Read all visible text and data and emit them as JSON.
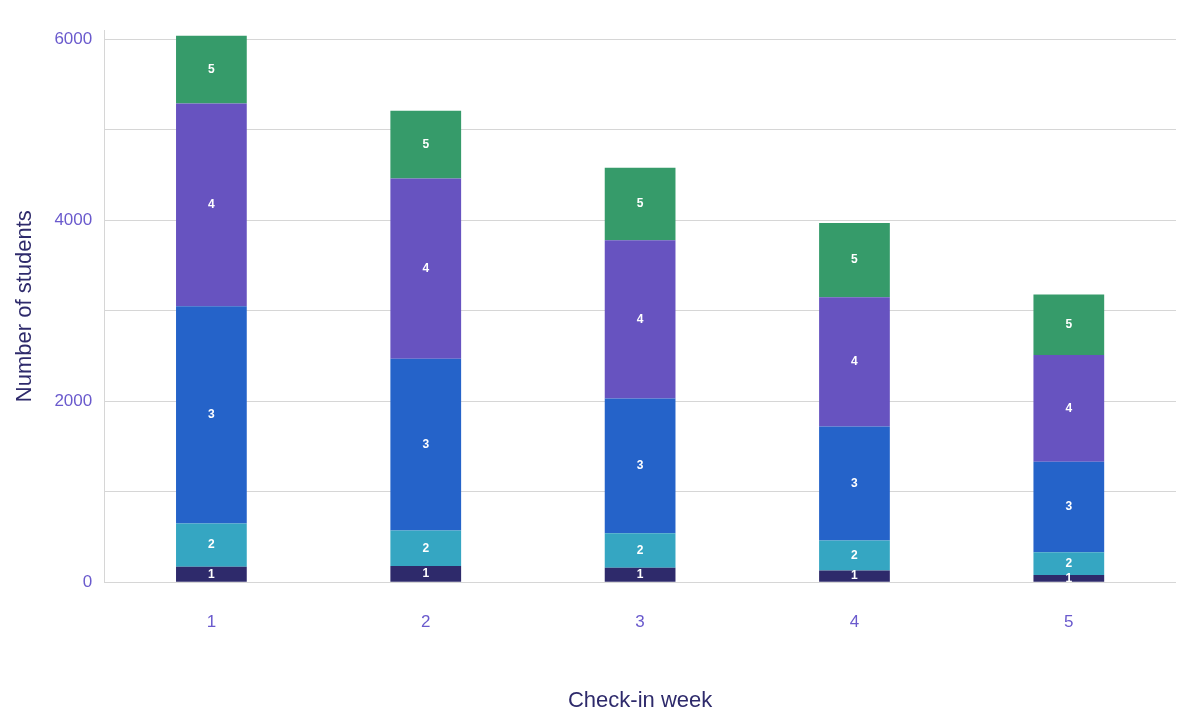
{
  "chart_data": {
    "type": "bar",
    "stacked": true,
    "xlabel": "Check-in week",
    "ylabel": "Number of students",
    "categories": [
      "1",
      "2",
      "3",
      "4",
      "5"
    ],
    "series": [
      {
        "name": "1",
        "color": "#2e2a6b",
        "values": [
          170,
          180,
          160,
          130,
          80
        ]
      },
      {
        "name": "2",
        "color": "#35a6c2",
        "values": [
          480,
          390,
          380,
          330,
          250
        ]
      },
      {
        "name": "3",
        "color": "#2563c9",
        "values": [
          2400,
          1900,
          1490,
          1260,
          1000
        ]
      },
      {
        "name": "4",
        "color": "#6753c0",
        "values": [
          2240,
          1990,
          1750,
          1430,
          1180
        ]
      },
      {
        "name": "5",
        "color": "#369b6a",
        "values": [
          750,
          750,
          800,
          820,
          670
        ]
      }
    ],
    "ylim": [
      0,
      6100
    ],
    "yticks": [
      0,
      {
        "value": 1000,
        "label": null
      },
      2000,
      {
        "value": 3000,
        "label": null
      },
      4000,
      {
        "value": 5000,
        "label": null
      },
      6000
    ],
    "grid": "y",
    "legend": false
  }
}
